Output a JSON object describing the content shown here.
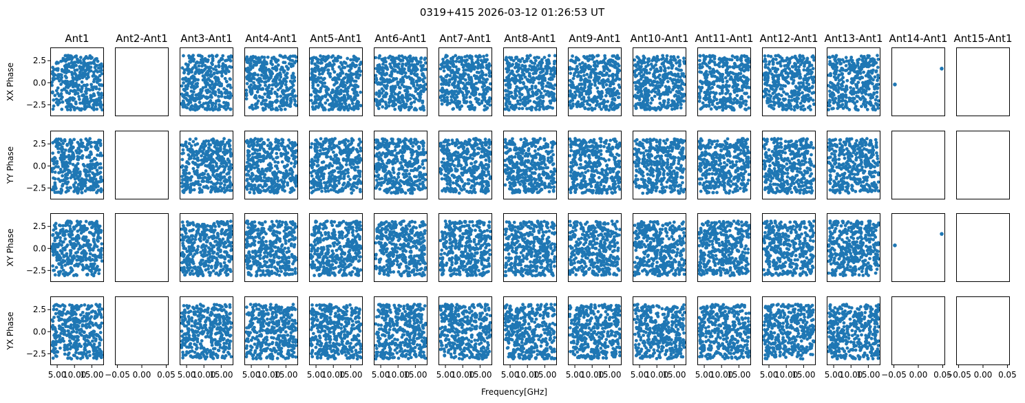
{
  "chart_data": {
    "type": "scatter",
    "title": "0319+415 2026-03-12 01:26:53 UT",
    "xlabel": "Frequency[GHz]",
    "panel_titles": [
      "Ant1",
      "Ant2-Ant1",
      "Ant3-Ant1",
      "Ant4-Ant1",
      "Ant5-Ant1",
      "Ant6-Ant1",
      "Ant7-Ant1",
      "Ant8-Ant1",
      "Ant9-Ant1",
      "Ant10-Ant1",
      "Ant11-Ant1",
      "Ant12-Ant1",
      "Ant13-Ant1",
      "Ant14-Ant1",
      "Ant15-Ant1"
    ],
    "row_labels": [
      "XX Phase",
      "YY Phase",
      "XY Phase",
      "YX Phase"
    ],
    "ylim": [
      -3.8,
      4.0
    ],
    "yticks": [
      -2.5,
      0.0,
      2.5
    ],
    "ytick_labels": [
      "−2.5",
      "0.0",
      "2.5"
    ],
    "freq_xlim": [
      3.0,
      18.5
    ],
    "freq_xticks": [
      5.0,
      10.0,
      15.0
    ],
    "freq_xtick_labels": [
      "5.00",
      "10.00",
      "15.00"
    ],
    "empty_xlim": [
      -0.055,
      0.055
    ],
    "empty_xticks": [
      -0.05,
      0.0,
      0.05
    ],
    "empty_xtick_labels": [
      "−0.05",
      "0.00",
      "0.05"
    ],
    "freq_range_ghz": [
      3.5,
      18.0
    ],
    "points_per_panel": 400,
    "empty_antennas": [
      2,
      15
    ],
    "sparse_antenna": 14,
    "sparse_points": {
      "XX Phase": [
        {
          "x": -0.048,
          "y": -0.2
        },
        {
          "x": 0.048,
          "y": 1.6
        }
      ],
      "XY Phase": [
        {
          "x": -0.048,
          "y": 0.35
        },
        {
          "x": 0.048,
          "y": 1.65
        }
      ]
    },
    "marker_color": "#1f77b4",
    "grid": false
  }
}
